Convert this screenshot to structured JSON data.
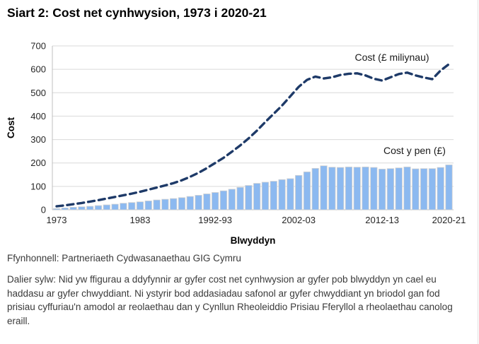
{
  "title": "Siart 2: Cost net cynhwysion, 1973 i 2020-21",
  "chart_data": {
    "type": "bar",
    "subtype": "bar-and-line combo",
    "x_years": [
      "1973",
      "1974",
      "1975",
      "1976",
      "1977",
      "1978",
      "1979",
      "1980",
      "1981",
      "1982",
      "1983",
      "1984",
      "1985",
      "1986",
      "1987",
      "1988",
      "1989",
      "1990",
      "1991",
      "1992-93",
      "1993-94",
      "1994-95",
      "1995-96",
      "1996-97",
      "1997-98",
      "1998-99",
      "1999-00",
      "2000-01",
      "2001-02",
      "2002-03",
      "2003-04",
      "2004-05",
      "2005-06",
      "2006-07",
      "2007-08",
      "2008-09",
      "2009-10",
      "2010-11",
      "2011-12",
      "2012-13",
      "2013-14",
      "2014-15",
      "2015-16",
      "2016-17",
      "2017-18",
      "2018-19",
      "2019-20",
      "2020-21"
    ],
    "series": [
      {
        "name": "Cost (£ miliynau)",
        "type": "line",
        "style": "dashed",
        "color": "#1e3a68",
        "values": [
          15,
          19,
          24,
          29,
          35,
          41,
          48,
          55,
          62,
          69,
          77,
          86,
          95,
          104,
          114,
          126,
          141,
          158,
          178,
          200,
          222,
          248,
          275,
          305,
          338,
          375,
          410,
          445,
          485,
          525,
          555,
          569,
          561,
          566,
          576,
          581,
          583,
          574,
          560,
          552,
          566,
          580,
          586,
          574,
          565,
          558,
          595,
          622
        ]
      },
      {
        "name": "Cost y pen (£)",
        "type": "bar",
        "color": "#8cb9f0",
        "values": [
          5,
          8,
          11,
          13,
          15,
          18,
          21,
          24,
          28,
          31,
          34,
          38,
          42,
          45,
          48,
          52,
          57,
          62,
          68,
          74,
          81,
          88,
          96,
          104,
          113,
          118,
          122,
          129,
          133,
          147,
          162,
          177,
          188,
          182,
          181,
          183,
          182,
          183,
          181,
          174,
          176,
          179,
          183,
          175,
          176,
          176,
          181,
          192
        ]
      }
    ],
    "x_tick_labels": [
      "1973",
      "1983",
      "1992-93",
      "2002-03",
      "2012-13",
      "2020-21"
    ],
    "x_tick_indices": [
      0,
      10,
      19,
      29,
      39,
      47
    ],
    "xlabel": "Blwyddyn",
    "ylabel": "Cost",
    "ylim": [
      0,
      700
    ],
    "y_ticks": [
      0,
      100,
      200,
      300,
      400,
      500,
      600,
      700
    ],
    "grid": true,
    "legend_position": "inline annotations above each series",
    "gridline_color": "#d9d9d9",
    "axis_color": "#bfbfbf",
    "bar_border_color": "#d2d2d2"
  },
  "footer": {
    "source": "Ffynhonnell: Partneriaeth Cydwasanaethau GIG Cymru",
    "note": "Dalier sylw: Nid yw ffigurau a ddyfynnir ar gyfer cost net cynhwysion ar gyfer pob blwyddyn yn cael eu haddasu ar gyfer chwyddiant. Ni ystyrir bod addasiadau safonol ar gyfer chwyddiant yn briodol gan fod prisiau cyffuriau'n amodol ar reolaethau dan y Cynllun Rheoleiddio Prisiau Fferyllol a rheolaethau canolog eraill."
  }
}
